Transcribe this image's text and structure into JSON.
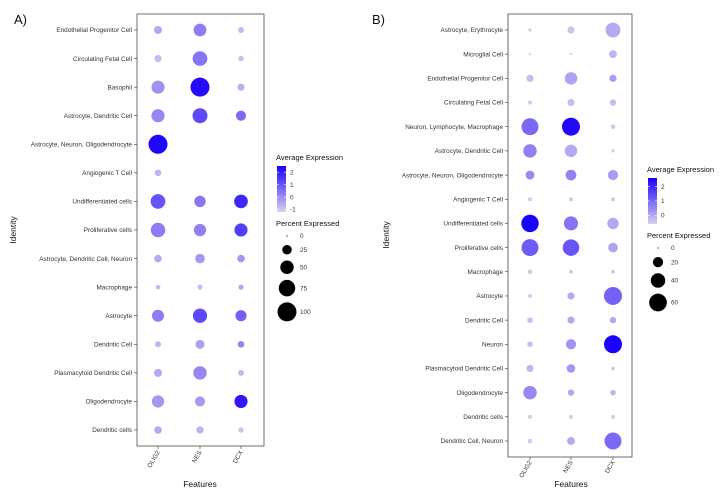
{
  "colors": {
    "low": "#d9d0ee",
    "high": "#1a00ff"
  },
  "chart_data": [
    {
      "type": "scatter",
      "subtype": "dot-plot",
      "panel_label": "A)",
      "xlabel": "Features",
      "ylabel": "Identity",
      "features": [
        "OLIG2",
        "NES",
        "DCX"
      ],
      "identities": [
        "Endothelial Progenitor Cell",
        "Circulating Fetal Cell",
        "Basophil",
        "Astrocyte, Dendritic Cell",
        "Astrocyte, Neuron, Oligodendrocyte",
        "Angiogenic T Cell",
        "Undifferentiated cells",
        "Proliferative cells",
        "Astrocyte, Dendritic Cell, Neuron",
        "Macrophage",
        "Astrocyte",
        "Dendritic Cell",
        "Plasmacytoid Dendritic Cell",
        "Oligodendrocyte",
        "Dendritic cells"
      ],
      "avg_expression": [
        [
          -0.5,
          0.3,
          -0.8
        ],
        [
          -0.8,
          0.4,
          -0.9
        ],
        [
          -0.1,
          2.3,
          -0.6
        ],
        [
          0.1,
          1.2,
          0.6
        ],
        [
          2.4,
          -1.0,
          -1.0
        ],
        [
          -0.7,
          -1.0,
          -1.0
        ],
        [
          1.0,
          0.4,
          1.8
        ],
        [
          0.3,
          0.2,
          1.4
        ],
        [
          -0.5,
          -0.2,
          -0.2
        ],
        [
          -0.8,
          -0.9,
          -0.5
        ],
        [
          0.3,
          1.2,
          0.8
        ],
        [
          -0.7,
          -0.3,
          0.2
        ],
        [
          -0.5,
          0.1,
          -0.8
        ],
        [
          -0.2,
          -0.2,
          2.1
        ],
        [
          -0.5,
          -0.7,
          -1.0
        ]
      ],
      "pct_expressed": [
        [
          18,
          45,
          10
        ],
        [
          14,
          60,
          8
        ],
        [
          48,
          100,
          14
        ],
        [
          48,
          62,
          28
        ],
        [
          100,
          0,
          0
        ],
        [
          12,
          0,
          0
        ],
        [
          60,
          36,
          52
        ],
        [
          58,
          42,
          48
        ],
        [
          16,
          26,
          16
        ],
        [
          6,
          8,
          8
        ],
        [
          40,
          56,
          34
        ],
        [
          10,
          22,
          12
        ],
        [
          18,
          50,
          10
        ],
        [
          42,
          28,
          48
        ],
        [
          16,
          15,
          8
        ]
      ],
      "legend": {
        "color_title": "Average Expression",
        "color_ticks": [
          2,
          1,
          0,
          -1
        ],
        "color_range": [
          -1.2,
          2.5
        ],
        "size_title": "Percent Expressed",
        "size_ticks": [
          0,
          25,
          50,
          75,
          100
        ],
        "size_max": 100
      }
    },
    {
      "type": "scatter",
      "subtype": "dot-plot",
      "panel_label": "B)",
      "xlabel": "Features",
      "ylabel": "Identity",
      "features": [
        "OLIG2",
        "NES",
        "DCX"
      ],
      "identities": [
        "Astrocyte, Erythrocyte",
        "Microglial Cell",
        "Endothelial Progenitor Cell",
        "Circulating Fetal Cell",
        "Neuron, Lymphocyte, Macrophage",
        "Astrocyte, Dendritic Cell",
        "Astrocyte, Neuron, Oligodendrocyte",
        "Angiogenic T Cell",
        "Undifferentiated cells",
        "Proliferative cells",
        "Macrophage",
        "Astrocyte",
        "Dendritic Cell",
        "Neuron",
        "Plasmacytoid Dendritic Cell",
        "Oligodendrocyte",
        "Dendritic cells",
        "Dendritic Cell, Neuron"
      ],
      "avg_expression": [
        [
          -0.5,
          -0.4,
          0.0
        ],
        [
          -0.5,
          -0.5,
          -0.2
        ],
        [
          -0.3,
          0.1,
          0.2
        ],
        [
          -0.5,
          -0.3,
          -0.3
        ],
        [
          1.0,
          2.5,
          -0.5
        ],
        [
          0.6,
          0.0,
          -0.5
        ],
        [
          0.5,
          0.6,
          0.2
        ],
        [
          -0.5,
          -0.5,
          -0.5
        ],
        [
          2.6,
          0.8,
          0.0
        ],
        [
          1.2,
          1.3,
          0.1
        ],
        [
          -0.5,
          -0.5,
          -0.5
        ],
        [
          -0.5,
          0.0,
          1.1
        ],
        [
          -0.3,
          0.0,
          0.0
        ],
        [
          -0.3,
          0.3,
          2.6
        ],
        [
          -0.2,
          0.3,
          -0.5
        ],
        [
          0.5,
          0.0,
          -0.2
        ],
        [
          -0.5,
          -0.5,
          -0.5
        ],
        [
          -0.5,
          0.0,
          1.0
        ]
      ],
      "pct_expressed": [
        [
          2,
          10,
          42
        ],
        [
          1,
          1,
          12
        ],
        [
          10,
          30,
          10
        ],
        [
          3,
          10,
          8
        ],
        [
          55,
          62,
          4
        ],
        [
          35,
          30,
          2
        ],
        [
          15,
          22,
          20
        ],
        [
          3,
          3,
          3
        ],
        [
          58,
          38,
          25
        ],
        [
          55,
          52,
          18
        ],
        [
          4,
          3,
          3
        ],
        [
          3,
          10,
          62
        ],
        [
          6,
          10,
          8
        ],
        [
          6,
          20,
          62
        ],
        [
          10,
          14,
          3
        ],
        [
          35,
          8,
          6
        ],
        [
          3,
          3,
          3
        ],
        [
          4,
          12,
          55
        ]
      ],
      "legend": {
        "color_title": "Average Expression",
        "color_ticks": [
          2,
          1,
          0
        ],
        "color_range": [
          -0.6,
          2.6
        ],
        "size_title": "Percent Expressed",
        "size_ticks": [
          0,
          20,
          40,
          60
        ],
        "size_max": 62
      }
    }
  ]
}
